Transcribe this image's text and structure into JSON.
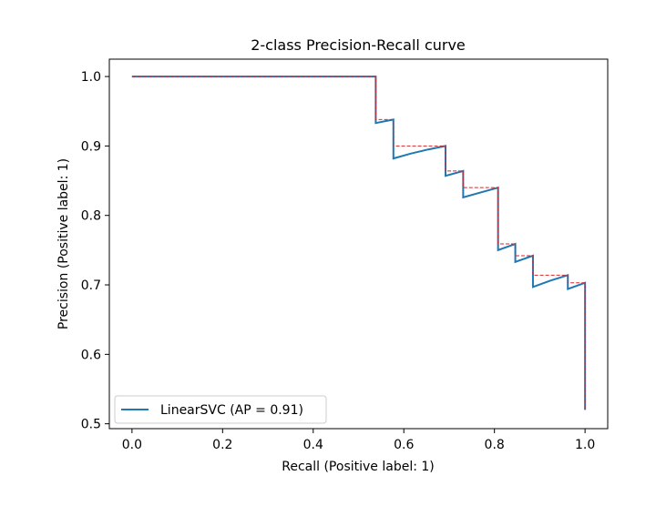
{
  "colors": {
    "curve": "#1f77b4",
    "interpolated": "#d62728",
    "axis": "#000000",
    "background": "#ffffff"
  },
  "chart_data": {
    "type": "line",
    "title": "2-class Precision-Recall curve",
    "xlabel": "Recall (Positive label: 1)",
    "ylabel": "Precision (Positive label: 1)",
    "xlim": [
      -0.05,
      1.05
    ],
    "ylim": [
      0.493,
      1.025
    ],
    "xticks": [
      0.0,
      0.2,
      0.4,
      0.6,
      0.8,
      1.0
    ],
    "xtick_labels": [
      "0.0",
      "0.2",
      "0.4",
      "0.6",
      "0.8",
      "1.0"
    ],
    "yticks": [
      0.5,
      0.6,
      0.7,
      0.8,
      0.9,
      1.0
    ],
    "ytick_labels": [
      "0.5",
      "0.6",
      "0.7",
      "0.8",
      "0.9",
      "1.0"
    ],
    "grid": false,
    "legend": {
      "position": "lower-left",
      "entries": [
        "LinearSVC (AP = 0.91)"
      ]
    },
    "series": [
      {
        "name": "LinearSVC (AP = 0.91)",
        "style": "step-solid",
        "recall": [
          0.0,
          0.538,
          0.538,
          0.577,
          0.577,
          0.615,
          0.654,
          0.692,
          0.692,
          0.731,
          0.731,
          0.769,
          0.808,
          0.808,
          0.846,
          0.846,
          0.885,
          0.885,
          0.923,
          0.962,
          0.962,
          1.0,
          1.0
        ],
        "precision": [
          1.0,
          1.0,
          0.933,
          0.938,
          0.882,
          0.889,
          0.895,
          0.9,
          0.857,
          0.864,
          0.826,
          0.833,
          0.84,
          0.75,
          0.759,
          0.733,
          0.742,
          0.697,
          0.706,
          0.714,
          0.694,
          0.703,
          0.52
        ]
      },
      {
        "name": "",
        "style": "step-dashed",
        "recall": [
          0.0,
          0.538,
          0.538,
          0.577,
          0.577,
          0.692,
          0.692,
          0.731,
          0.731,
          0.808,
          0.808,
          0.846,
          0.846,
          0.885,
          0.885,
          0.962,
          0.962,
          1.0,
          1.0
        ],
        "precision": [
          1.0,
          1.0,
          0.938,
          0.938,
          0.9,
          0.9,
          0.864,
          0.864,
          0.84,
          0.84,
          0.759,
          0.759,
          0.742,
          0.742,
          0.714,
          0.714,
          0.703,
          0.703,
          0.52
        ]
      }
    ]
  }
}
